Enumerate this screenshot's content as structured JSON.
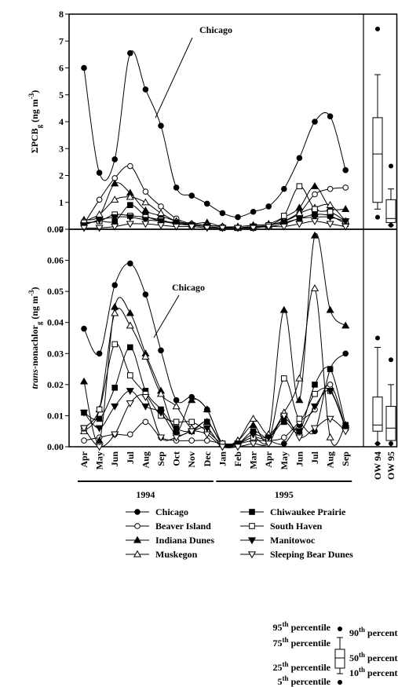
{
  "chart_data": {
    "type": "line",
    "categories": [
      [
        "Apr",
        "May",
        "Jun",
        "Jul",
        "Aug",
        "Sep",
        "Oct",
        "Nov",
        "Dec"
      ],
      [
        "Jan",
        "Feb",
        "Mar",
        "Apr",
        "May",
        "Jun",
        "Jul",
        "Aug",
        "Sep"
      ]
    ],
    "years": [
      "1994",
      "1995"
    ],
    "series": [
      {
        "name": "Chicago",
        "marker": "circle",
        "filled": true,
        "color": "#000000",
        "values": [
          [
            6.0,
            2.1,
            2.6,
            6.55,
            5.2,
            3.85,
            1.55,
            1.25,
            0.95,
            0.6,
            0.45,
            0.65,
            0.85,
            1.5,
            2.65,
            4.0,
            4.2,
            2.2
          ],
          [
            0.038,
            0.03,
            0.052,
            0.059,
            0.049,
            0.031,
            0.015,
            0.016,
            0.012,
            0.001,
            0.001,
            0.003,
            0.002,
            0.001,
            0.007,
            0.005,
            0.025,
            0.03
          ]
        ]
      },
      {
        "name": "Beaver Island",
        "marker": "circle",
        "filled": false,
        "color": "#000000",
        "values": [
          [
            0.2,
            1.1,
            1.9,
            2.35,
            1.4,
            0.85,
            0.4,
            0.2,
            0.15,
            0.1,
            0.05,
            0.1,
            0.15,
            0.3,
            0.6,
            1.3,
            1.5,
            1.55
          ],
          [
            0.002,
            0.003,
            0.004,
            0.004,
            0.008,
            0.003,
            0.002,
            0.002,
            0.002,
            0.001,
            0.001,
            0.002,
            0.002,
            0.003,
            0.008,
            0.012,
            0.02,
            0.006
          ]
        ]
      },
      {
        "name": "Indiana Dunes",
        "marker": "triangle-up",
        "filled": true,
        "color": "#000000",
        "values": [
          [
            0.35,
            0.5,
            1.7,
            1.35,
            0.7,
            0.5,
            0.3,
            0.2,
            0.25,
            0.1,
            0.1,
            0.15,
            0.2,
            0.45,
            0.8,
            1.6,
            0.8,
            0.75
          ],
          [
            0.021,
            0.002,
            0.045,
            0.043,
            0.03,
            0.018,
            0.005,
            0.015,
            0.012,
            0.001,
            0.002,
            0.007,
            0.004,
            0.044,
            0.015,
            0.068,
            0.044,
            0.039
          ]
        ]
      },
      {
        "name": "Muskegon",
        "marker": "triangle-up",
        "filled": false,
        "color": "#000000",
        "values": [
          [
            0.3,
            0.55,
            1.1,
            1.2,
            1.0,
            0.6,
            0.3,
            0.2,
            0.15,
            0.1,
            0.05,
            0.1,
            0.15,
            0.3,
            0.6,
            0.8,
            0.9,
            0.3
          ],
          [
            0.005,
            0.012,
            0.043,
            0.039,
            0.029,
            0.017,
            0.013,
            0.006,
            0.008,
            0.001,
            0.002,
            0.009,
            0.004,
            0.011,
            0.022,
            0.051,
            0.003,
            0.007
          ]
        ]
      },
      {
        "name": "Chiwaukee Prairie",
        "marker": "square",
        "filled": true,
        "color": "#000000",
        "values": [
          [
            0.2,
            0.3,
            0.3,
            0.9,
            0.5,
            0.3,
            0.25,
            0.15,
            0.1,
            0.05,
            0.05,
            0.05,
            0.15,
            0.25,
            0.4,
            0.55,
            0.5,
            0.2
          ],
          [
            0.011,
            0.009,
            0.019,
            0.032,
            0.018,
            0.012,
            0.006,
            0.005,
            0.008,
            0.001,
            0.001,
            0.005,
            0.003,
            0.008,
            0.005,
            0.02,
            0.025,
            0.007
          ]
        ]
      },
      {
        "name": "South Haven",
        "marker": "square",
        "filled": false,
        "color": "#000000",
        "values": [
          [
            0.25,
            0.3,
            0.55,
            0.5,
            0.45,
            0.35,
            0.2,
            0.15,
            0.1,
            0.05,
            0.05,
            0.1,
            0.15,
            0.5,
            1.6,
            0.75,
            0.65,
            0.3
          ],
          [
            0.006,
            0.012,
            0.033,
            0.023,
            0.017,
            0.01,
            0.008,
            0.008,
            0.005,
            0.001,
            0.001,
            0.003,
            0.002,
            0.022,
            0.009,
            0.017,
            0.018,
            0.006
          ]
        ]
      },
      {
        "name": "Manitowoc",
        "marker": "triangle-down",
        "filled": true,
        "color": "#000000",
        "values": [
          [
            0.15,
            0.35,
            0.45,
            0.45,
            0.35,
            0.3,
            0.2,
            0.15,
            0.1,
            0.05,
            0.05,
            0.1,
            0.1,
            0.2,
            0.4,
            0.45,
            0.45,
            0.3
          ],
          [
            0.011,
            0.006,
            0.013,
            0.018,
            0.013,
            0.011,
            0.004,
            0.005,
            0.006,
            0.0,
            0.001,
            0.004,
            0.003,
            0.009,
            0.005,
            0.013,
            0.018,
            0.006
          ]
        ]
      },
      {
        "name": "Sleeping Bear Dunes",
        "marker": "triangle-down",
        "filled": false,
        "color": "#000000",
        "values": [
          [
            0.05,
            0.05,
            0.1,
            0.2,
            0.2,
            0.15,
            0.1,
            0.1,
            0.05,
            0.05,
            0.05,
            0.05,
            0.1,
            0.1,
            0.2,
            0.3,
            0.2,
            0.1
          ],
          [
            0.006,
            0.0,
            0.004,
            0.014,
            0.016,
            0.003,
            0.003,
            0.005,
            0.004,
            0.0,
            0.0,
            0.001,
            0.001,
            0.01,
            0.003,
            0.006,
            0.009,
            0.005
          ]
        ]
      }
    ],
    "panels": [
      {
        "ylabel": [
          {
            "text": "ΣPCB"
          },
          {
            "text": "g",
            "style": "sub"
          },
          {
            "text": " (ng m"
          },
          {
            "text": "-3",
            "style": "sup"
          },
          {
            "text": ")"
          }
        ],
        "ylim": [
          0,
          8
        ],
        "yticks": [
          0,
          1,
          2,
          3,
          4,
          5,
          6,
          7,
          8
        ],
        "annotation": "Chicago",
        "boxes": [
          {
            "label": "OW 94",
            "p5": 0.45,
            "p10": 0.75,
            "p25": 1.0,
            "p50": 2.8,
            "p75": 4.15,
            "p90": 5.75,
            "p95": 7.45
          },
          {
            "label": "OW 95",
            "p5": 0.15,
            "p10": 0.15,
            "p25": 0.25,
            "p50": 0.4,
            "p75": 1.1,
            "p90": 1.5,
            "p95": 2.35
          }
        ]
      },
      {
        "ylabel": [
          {
            "text": "trans",
            "style": "italic"
          },
          {
            "text": "-nonachlor"
          },
          {
            "text": "g",
            "style": "sub"
          },
          {
            "text": " (ng m"
          },
          {
            "text": "-3",
            "style": "sup"
          },
          {
            "text": ")"
          }
        ],
        "ylim": [
          0,
          0.07
        ],
        "yticks": [
          {
            "value": 0,
            "label": "0.00"
          },
          0.01,
          0.02,
          0.03,
          0.04,
          0.05,
          0.06,
          0.07
        ],
        "annotation": "Chicago",
        "boxes": [
          {
            "label": "OW 94",
            "p5": 0.001,
            "p10": 0.001,
            "p25": 0.005,
            "p50": 0.007,
            "p75": 0.016,
            "p90": 0.032,
            "p95": 0.035
          },
          {
            "label": "OW 95",
            "p5": 0.001,
            "p10": 0.0,
            "p25": 0.002,
            "p50": 0.006,
            "p75": 0.013,
            "p90": 0.02,
            "p95": 0.028
          }
        ]
      }
    ],
    "box_key": [
      [
        {
          "text": "95"
        },
        {
          "text": "th",
          "style": "sup"
        },
        {
          "text": " percentile"
        }
      ],
      [
        {
          "text": "75"
        },
        {
          "text": "th",
          "style": "sup"
        },
        {
          "text": " percentile"
        }
      ],
      [
        {
          "text": "25"
        },
        {
          "text": "th",
          "style": "sup"
        },
        {
          "text": " percentile"
        }
      ],
      [
        {
          "text": "5"
        },
        {
          "text": "th",
          "style": "sup"
        },
        {
          "text": " percentile"
        }
      ],
      [
        {
          "text": "90"
        },
        {
          "text": "th",
          "style": "sup"
        },
        {
          "text": " percentile"
        }
      ],
      [
        {
          "text": "50"
        },
        {
          "text": "th",
          "style": "sup"
        },
        {
          "text": " percentile"
        }
      ],
      [
        {
          "text": "10"
        },
        {
          "text": "th",
          "style": "sup"
        },
        {
          "text": " percentile"
        }
      ]
    ]
  }
}
